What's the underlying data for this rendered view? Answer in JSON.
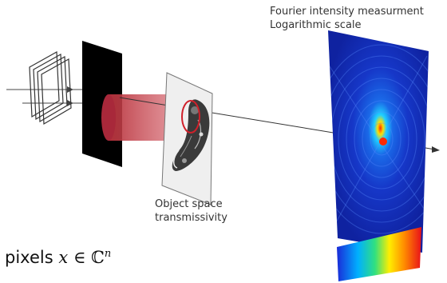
{
  "captions": {
    "fourier_line1": "Fourier intensity measurment",
    "fourier_line2": "Logarithmic scale",
    "object_line1": "Object space",
    "object_line2": "transmissivity",
    "pixels_word": "pixels",
    "pixels_var": "x",
    "pixels_op": "∈",
    "pixels_set": "ℂ",
    "pixels_exp": "n"
  },
  "colors": {
    "mask": "#000000",
    "beam": "#c0404a",
    "ring": "#d0202a",
    "detector_bg": "#1637c8",
    "detector_center": "#ff2a00"
  },
  "colorbar": [
    "#1a2ad8",
    "#00b0ff",
    "#30e080",
    "#ffee00",
    "#ff8a00",
    "#e8101a"
  ]
}
